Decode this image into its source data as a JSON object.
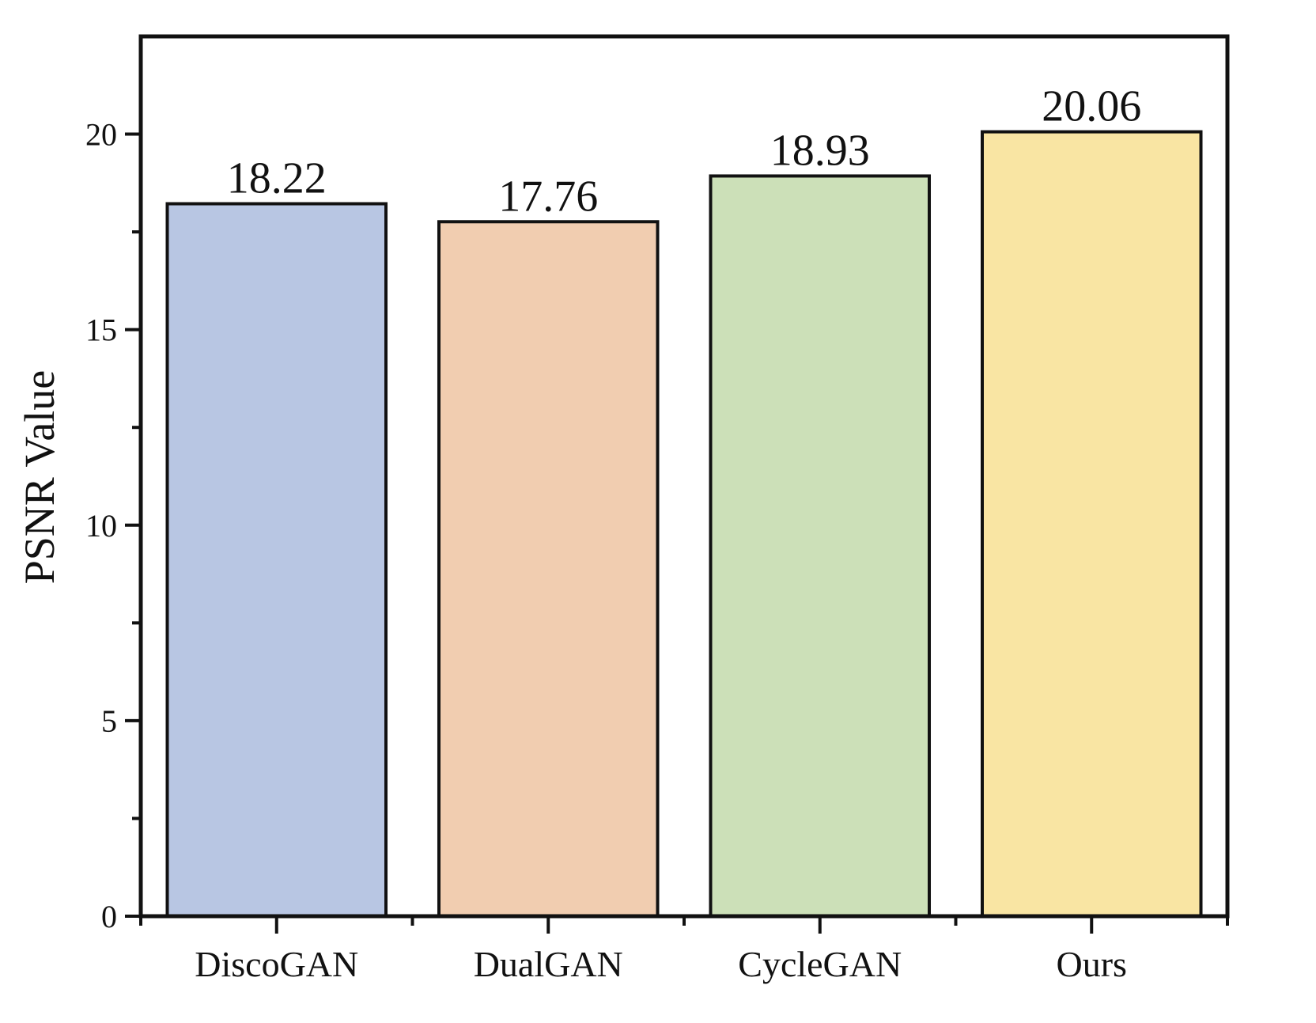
{
  "chart_data": {
    "type": "bar",
    "title": "",
    "xlabel": "",
    "ylabel": "PSNR Value",
    "categories": [
      "DiscoGAN",
      "DualGAN",
      "CycleGAN",
      "Ours"
    ],
    "values": [
      18.22,
      17.76,
      18.93,
      20.06
    ],
    "value_labels": [
      "18.22",
      "17.76",
      "18.93",
      "20.06"
    ],
    "colors": [
      "#b8c6e3",
      "#f1cdb0",
      "#cce0b8",
      "#f9e5a3"
    ],
    "yticks": [
      0,
      5,
      10,
      15,
      20
    ],
    "ytick_labels": [
      "0",
      "5",
      "10",
      "15",
      "20"
    ],
    "ylim": [
      0,
      22.5
    ],
    "grid": false,
    "legend": "none"
  }
}
